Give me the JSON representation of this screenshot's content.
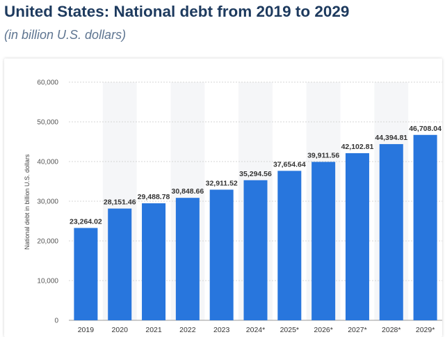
{
  "header": {
    "title": "United States: National debt from 2019 to 2029",
    "subtitle": "(in billion U.S. dollars)"
  },
  "chart_data": {
    "type": "bar",
    "categories": [
      "2019",
      "2020",
      "2021",
      "2022",
      "2023",
      "2024*",
      "2025*",
      "2026*",
      "2027*",
      "2028*",
      "2029*"
    ],
    "values": [
      23264.02,
      28151.46,
      29488.78,
      30848.66,
      32911.52,
      35294.56,
      37654.64,
      39911.56,
      42102.81,
      44394.81,
      46708.04
    ],
    "value_labels": [
      "23,264.02",
      "28,151.46",
      "29,488.78",
      "30,848.66",
      "32,911.52",
      "35,294.56",
      "37,654.64",
      "39,911.56",
      "42,102.81",
      "44,394.81",
      "46,708.04"
    ],
    "ylabel": "National debt in billion U.S. dollars",
    "ylim": [
      0,
      60000
    ],
    "yticks": [
      0,
      10000,
      20000,
      30000,
      40000,
      50000,
      60000
    ],
    "ytick_labels": [
      "0",
      "10,000",
      "20,000",
      "30,000",
      "40,000",
      "50,000",
      "60,000"
    ],
    "grid": true,
    "bar_color": "#2876dd"
  }
}
